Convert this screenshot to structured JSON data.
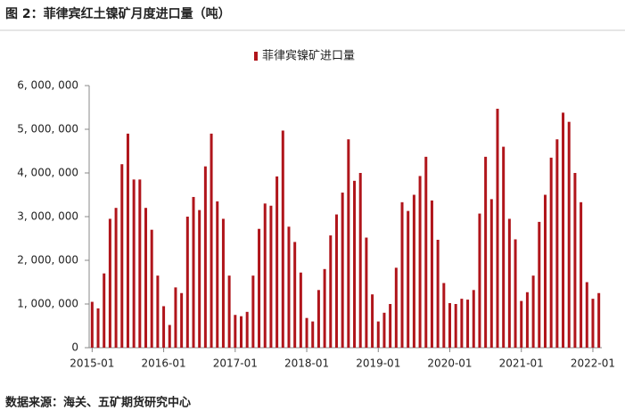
{
  "chart_data": {
    "type": "bar",
    "title": "图 2：菲律宾红土镍矿月度进口量（吨）",
    "source": "数据来源：海关、五矿期货研究中心",
    "series": [
      {
        "name": "菲律宾镍矿进口量",
        "color": "#b0151b",
        "values": [
          1050000,
          900000,
          1700000,
          2950000,
          3200000,
          4200000,
          4900000,
          3850000,
          3850000,
          3200000,
          2700000,
          1650000,
          950000,
          520000,
          1380000,
          1250000,
          3000000,
          3450000,
          3150000,
          4150000,
          4900000,
          3350000,
          2950000,
          1650000,
          750000,
          720000,
          820000,
          1650000,
          2720000,
          3300000,
          3250000,
          3920000,
          4970000,
          2770000,
          2420000,
          1720000,
          680000,
          600000,
          1320000,
          1800000,
          2570000,
          3050000,
          3550000,
          4770000,
          3820000,
          4000000,
          2520000,
          1220000,
          600000,
          800000,
          1000000,
          1830000,
          3330000,
          3130000,
          3500000,
          3930000,
          4370000,
          3370000,
          2470000,
          1480000,
          1020000,
          1000000,
          1120000,
          1100000,
          1320000,
          3070000,
          4370000,
          3400000,
          5470000,
          4600000,
          2950000,
          2480000,
          1070000,
          1270000,
          1650000,
          2880000,
          3500000,
          4350000,
          4770000,
          5380000,
          5170000,
          4000000,
          3330000,
          1500000,
          1120000,
          1250000
        ]
      }
    ],
    "categories": [
      "2015-01",
      null,
      null,
      null,
      null,
      null,
      null,
      null,
      null,
      null,
      null,
      null,
      "2016-01",
      null,
      null,
      null,
      null,
      null,
      null,
      null,
      null,
      null,
      null,
      null,
      "2017-01",
      null,
      null,
      null,
      null,
      null,
      null,
      null,
      null,
      null,
      null,
      null,
      "2018-01",
      null,
      null,
      null,
      null,
      null,
      null,
      null,
      null,
      null,
      null,
      null,
      "2019-01",
      null,
      null,
      null,
      null,
      null,
      null,
      null,
      null,
      null,
      null,
      null,
      "2020-01",
      null,
      null,
      null,
      null,
      null,
      null,
      null,
      null,
      null,
      null,
      null,
      "2021-01",
      null,
      null,
      null,
      null,
      null,
      null,
      null,
      null,
      null,
      null,
      null,
      "2022-01",
      null
    ],
    "ylim": [
      0,
      6000000
    ],
    "yticks": [
      0,
      {
        "value": 1000000,
        "label": "1, 000, 000"
      },
      {
        "value": 2000000,
        "label": "2, 000, 000"
      },
      {
        "value": 3000000,
        "label": "3, 000, 000"
      },
      {
        "value": 4000000,
        "label": "4, 000, 000"
      },
      {
        "value": 5000000,
        "label": "5, 000, 000"
      },
      {
        "value": 6000000,
        "label": "6, 000, 000"
      }
    ],
    "grid": false,
    "legend": "top"
  }
}
